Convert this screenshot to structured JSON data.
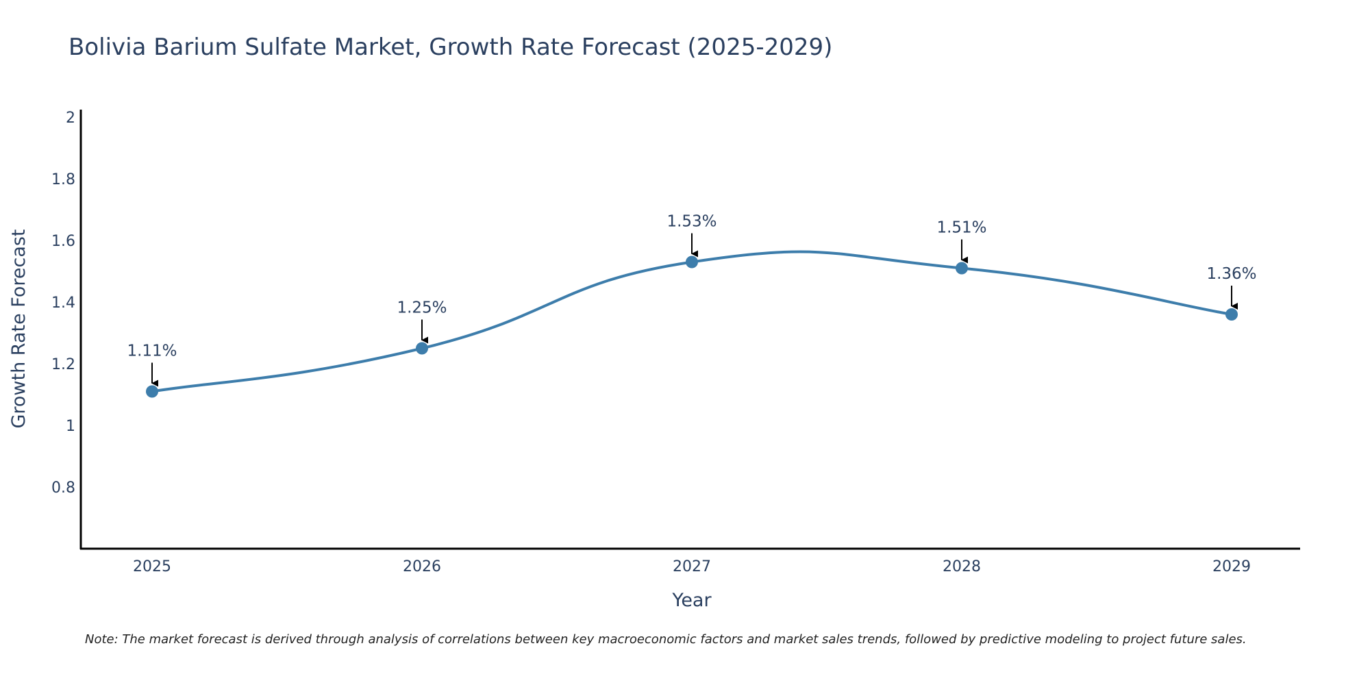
{
  "chart_data": {
    "type": "line",
    "title": "Bolivia Barium Sulfate Market, Growth Rate Forecast (2025-2029)",
    "xlabel": "Year",
    "ylabel": "Growth Rate Forecast",
    "categories": [
      "2025",
      "2026",
      "2027",
      "2028",
      "2029"
    ],
    "values": [
      1.11,
      1.25,
      1.53,
      1.51,
      1.36
    ],
    "annotations": [
      "1.11%",
      "1.25%",
      "1.53%",
      "1.51%",
      "1.36%"
    ],
    "ylim": [
      0.6,
      2.02
    ],
    "yticks": [
      0.8,
      1,
      1.2,
      1.4,
      1.6,
      1.8,
      2
    ],
    "ytick_labels": [
      "0.8",
      "1",
      "1.2",
      "1.4",
      "1.6",
      "1.8",
      "2"
    ],
    "line_shape": "spline",
    "grid": false,
    "line_color": "#3d7dab",
    "marker_color": "#3d7dab"
  },
  "note": "Note: The market forecast is derived through analysis of correlations between key macroeconomic factors and market sales trends, followed by predictive modeling to project future sales."
}
